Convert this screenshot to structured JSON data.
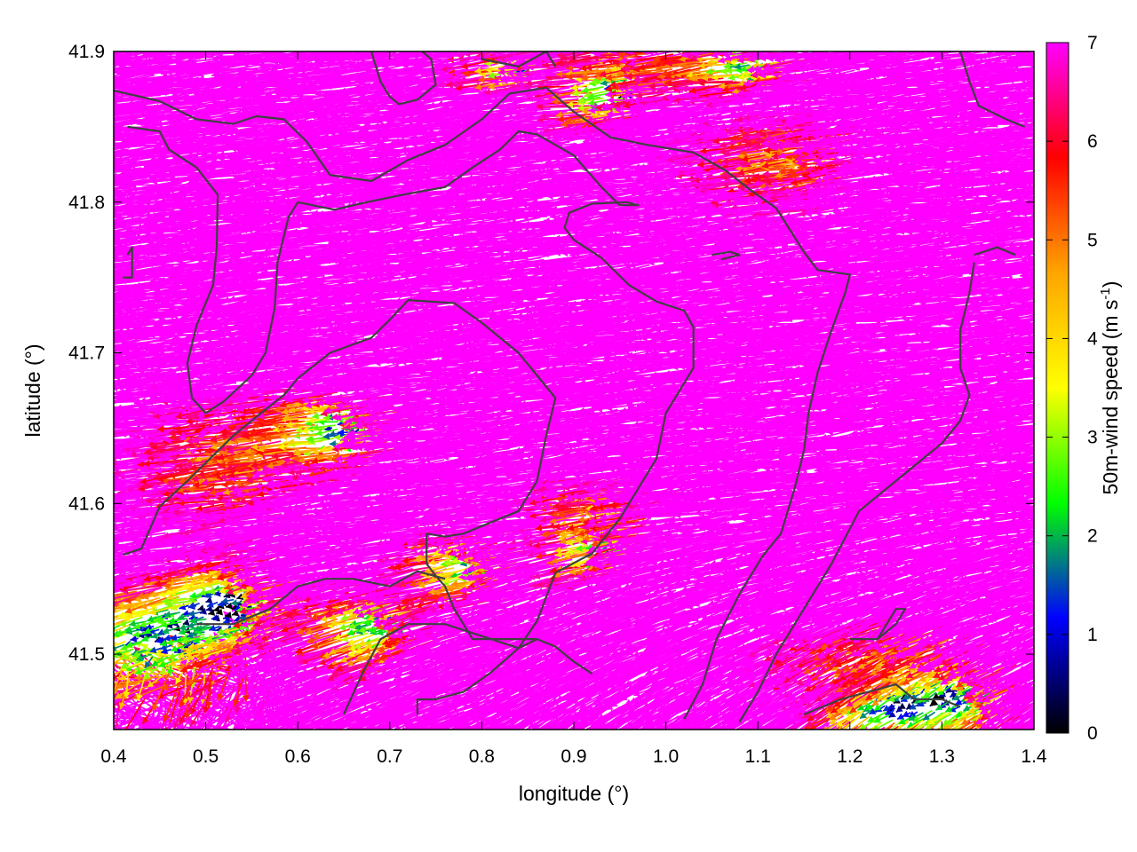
{
  "chart_data": {
    "type": "vector-field",
    "xlabel": "longitude (°)",
    "ylabel": "latitude (°)",
    "xlim": [
      0.4,
      1.4
    ],
    "ylim": [
      41.45,
      41.9
    ],
    "xticks": [
      "0.4",
      "0.5",
      "0.6",
      "0.7",
      "0.8",
      "0.9",
      "1.0",
      "1.1",
      "1.2",
      "1.3",
      "1.4"
    ],
    "yticks": [
      "41.5",
      "41.6",
      "41.7",
      "41.8",
      "41.9"
    ],
    "colorbar": {
      "label_main": "50m-wind speed (m s",
      "label_sup": "-1",
      "label_end": ")",
      "range": [
        0,
        7
      ],
      "ticks": [
        "0",
        "1",
        "2",
        "3",
        "4",
        "5",
        "6",
        "7"
      ],
      "palette": [
        "#000000",
        "#0000ff",
        "#00ff00",
        "#ffff00",
        "#ffa500",
        "#ff0000",
        "#ff00ff"
      ]
    },
    "wind_regions_description": "dominant magenta (>=7 m/s) westward vectors; weak mixed-colour winds in south-west corner",
    "contours": [
      [
        [
          0.4,
          41.874
        ],
        [
          0.45,
          41.867
        ],
        [
          0.49,
          41.855
        ],
        [
          0.53,
          41.852
        ],
        [
          0.555,
          41.857
        ],
        [
          0.585,
          41.855
        ],
        [
          0.61,
          41.84
        ],
        [
          0.635,
          41.818
        ],
        [
          0.68,
          41.814
        ],
        [
          0.72,
          41.828
        ],
        [
          0.76,
          41.838
        ],
        [
          0.8,
          41.855
        ],
        [
          0.83,
          41.872
        ],
        [
          0.87,
          41.876
        ],
        [
          0.9,
          41.86
        ],
        [
          0.94,
          41.843
        ],
        [
          0.98,
          41.838
        ],
        [
          1.03,
          41.833
        ],
        [
          1.065,
          41.821
        ],
        [
          1.09,
          41.809
        ],
        [
          1.12,
          41.796
        ],
        [
          1.15,
          41.767
        ],
        [
          1.165,
          41.755
        ],
        [
          1.2,
          41.752
        ],
        [
          1.195,
          41.74
        ],
        [
          1.18,
          41.715
        ],
        [
          1.165,
          41.687
        ],
        [
          1.155,
          41.66
        ],
        [
          1.15,
          41.635
        ],
        [
          1.14,
          41.61
        ],
        [
          1.125,
          41.58
        ],
        [
          1.105,
          41.565
        ],
        [
          1.08,
          41.54
        ],
        [
          1.055,
          41.51
        ],
        [
          1.04,
          41.48
        ],
        [
          1.02,
          41.457
        ]
      ],
      [
        [
          0.415,
          41.85
        ],
        [
          0.45,
          41.847
        ],
        [
          0.46,
          41.835
        ],
        [
          0.49,
          41.823
        ],
        [
          0.513,
          41.805
        ],
        [
          0.512,
          41.77
        ],
        [
          0.508,
          41.745
        ],
        [
          0.49,
          41.718
        ],
        [
          0.48,
          41.693
        ],
        [
          0.485,
          41.67
        ],
        [
          0.5,
          41.66
        ],
        [
          0.52,
          41.668
        ],
        [
          0.55,
          41.685
        ],
        [
          0.565,
          41.7
        ],
        [
          0.575,
          41.73
        ],
        [
          0.578,
          41.76
        ],
        [
          0.59,
          41.79
        ],
        [
          0.6,
          41.8
        ],
        [
          0.64,
          41.795
        ],
        [
          0.675,
          41.8
        ],
        [
          0.715,
          41.805
        ],
        [
          0.76,
          41.81
        ],
        [
          0.79,
          41.823
        ],
        [
          0.82,
          41.835
        ],
        [
          0.84,
          41.847
        ],
        [
          0.86,
          41.845
        ],
        [
          0.9,
          41.831
        ],
        [
          0.93,
          41.81
        ],
        [
          0.95,
          41.798
        ],
        [
          0.97,
          41.798
        ],
        [
          0.958,
          41.8
        ],
        [
          0.92,
          41.799
        ],
        [
          0.895,
          41.793
        ],
        [
          0.89,
          41.783
        ],
        [
          0.9,
          41.775
        ],
        [
          0.93,
          41.763
        ],
        [
          0.96,
          41.745
        ],
        [
          0.99,
          41.734
        ],
        [
          1.02,
          41.728
        ],
        [
          1.03,
          41.717
        ],
        [
          1.03,
          41.69
        ],
        [
          1.0,
          41.66
        ],
        [
          0.99,
          41.63
        ],
        [
          0.97,
          41.61
        ],
        [
          0.95,
          41.59
        ],
        [
          0.92,
          41.567
        ],
        [
          0.88,
          41.554
        ],
        [
          0.86,
          41.522
        ],
        [
          0.84,
          41.504
        ],
        [
          0.81,
          41.488
        ],
        [
          0.78,
          41.475
        ],
        [
          0.75,
          41.47
        ],
        [
          0.73,
          41.47
        ],
        [
          0.73,
          41.46
        ]
      ],
      [
        [
          0.41,
          41.566
        ],
        [
          0.43,
          41.57
        ],
        [
          0.45,
          41.598
        ],
        [
          0.48,
          41.615
        ],
        [
          0.53,
          41.645
        ],
        [
          0.56,
          41.66
        ],
        [
          0.585,
          41.672
        ],
        [
          0.6,
          41.683
        ],
        [
          0.635,
          41.7
        ],
        [
          0.68,
          41.71
        ],
        [
          0.7,
          41.722
        ],
        [
          0.72,
          41.735
        ],
        [
          0.77,
          41.733
        ],
        [
          0.8,
          41.72
        ],
        [
          0.84,
          41.7
        ],
        [
          0.86,
          41.685
        ],
        [
          0.88,
          41.67
        ],
        [
          0.87,
          41.645
        ],
        [
          0.86,
          41.615
        ],
        [
          0.84,
          41.595
        ],
        [
          0.78,
          41.58
        ],
        [
          0.76,
          41.578
        ],
        [
          0.74,
          41.58
        ],
        [
          0.74,
          41.56
        ],
        [
          0.75,
          41.552
        ],
        [
          0.76,
          41.545
        ],
        [
          0.77,
          41.53
        ],
        [
          0.78,
          41.52
        ],
        [
          0.79,
          41.51
        ],
        [
          0.82,
          41.51
        ],
        [
          0.86,
          41.51
        ],
        [
          0.88,
          41.505
        ],
        [
          0.9,
          41.495
        ],
        [
          0.92,
          41.487
        ]
      ],
      [
        [
          0.65,
          41.46
        ],
        [
          0.67,
          41.487
        ],
        [
          0.69,
          41.51
        ],
        [
          0.72,
          41.52
        ],
        [
          0.76,
          41.52
        ],
        [
          0.8,
          41.512
        ],
        [
          0.84,
          41.504
        ],
        [
          0.86,
          41.51
        ]
      ],
      [
        [
          0.49,
          41.52
        ],
        [
          0.53,
          41.52
        ],
        [
          0.57,
          41.53
        ],
        [
          0.6,
          41.545
        ],
        [
          0.63,
          41.55
        ],
        [
          0.66,
          41.55
        ],
        [
          0.7,
          41.545
        ],
        [
          0.73,
          41.555
        ],
        [
          0.76,
          41.55
        ]
      ],
      [
        [
          1.15,
          41.46
        ],
        [
          1.19,
          41.47
        ],
        [
          1.22,
          41.475
        ],
        [
          1.25,
          41.48
        ],
        [
          1.27,
          41.47
        ],
        [
          1.3,
          41.47
        ],
        [
          1.32,
          41.465
        ]
      ],
      [
        [
          1.2,
          41.51
        ],
        [
          1.23,
          41.51
        ],
        [
          1.25,
          41.52
        ],
        [
          1.26,
          41.53
        ],
        [
          1.25,
          41.53
        ],
        [
          1.23,
          41.51
        ]
      ],
      [
        [
          1.335,
          41.76
        ],
        [
          1.33,
          41.74
        ],
        [
          1.32,
          41.715
        ],
        [
          1.32,
          41.69
        ],
        [
          1.33,
          41.672
        ],
        [
          1.32,
          41.655
        ],
        [
          1.3,
          41.64
        ],
        [
          1.27,
          41.625
        ],
        [
          1.24,
          41.61
        ],
        [
          1.21,
          41.595
        ],
        [
          1.18,
          41.56
        ],
        [
          1.15,
          41.53
        ],
        [
          1.12,
          41.5
        ],
        [
          1.1,
          41.475
        ],
        [
          1.08,
          41.455
        ]
      ],
      [
        [
          1.335,
          41.765
        ],
        [
          1.36,
          41.77
        ],
        [
          1.38,
          41.765
        ]
      ],
      [
        [
          0.72,
          41.908
        ],
        [
          0.745,
          41.895
        ],
        [
          0.75,
          41.878
        ],
        [
          0.73,
          41.868
        ],
        [
          0.71,
          41.865
        ],
        [
          0.7,
          41.87
        ],
        [
          0.69,
          41.88
        ],
        [
          0.68,
          41.9
        ]
      ],
      [
        [
          0.8,
          41.895
        ],
        [
          0.84,
          41.89
        ],
        [
          0.87,
          41.9
        ],
        [
          0.88,
          41.89
        ]
      ],
      [
        [
          1.32,
          41.9
        ],
        [
          1.33,
          41.88
        ],
        [
          1.34,
          41.864
        ],
        [
          1.37,
          41.855
        ],
        [
          1.39,
          41.85
        ]
      ],
      [
        [
          0.415,
          41.765
        ],
        [
          0.42,
          41.77
        ],
        [
          0.42,
          41.75
        ],
        [
          0.41,
          41.75
        ]
      ],
      [
        [
          1.05,
          41.765
        ],
        [
          1.07,
          41.767
        ],
        [
          1.08,
          41.765
        ],
        [
          1.06,
          41.762
        ]
      ]
    ]
  }
}
